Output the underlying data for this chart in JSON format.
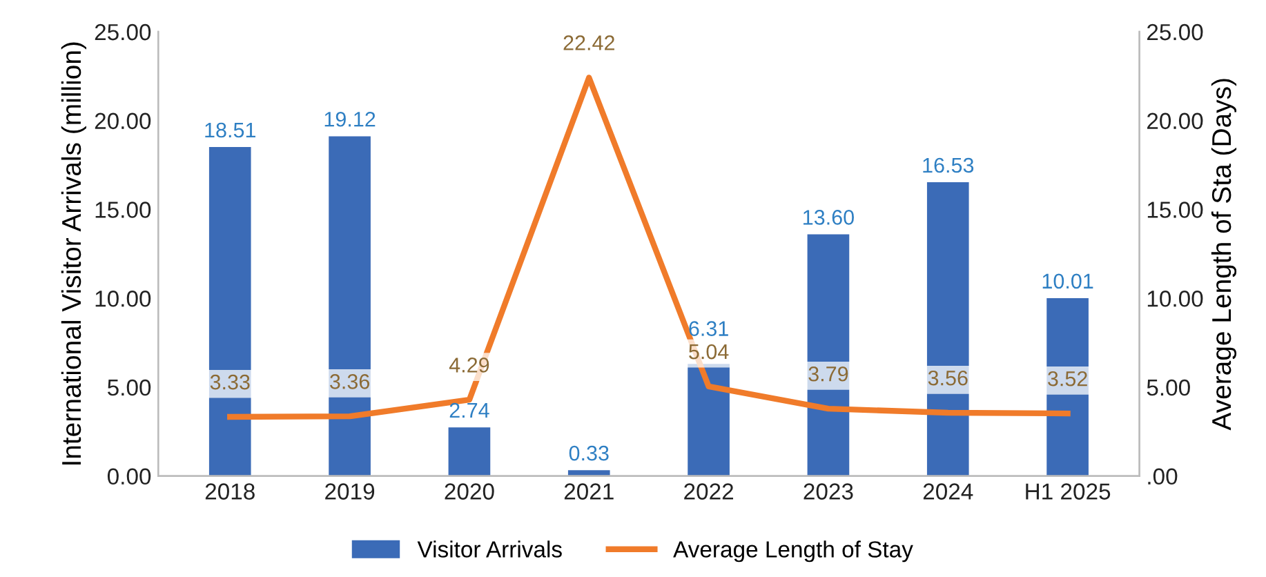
{
  "chart_data": {
    "type": "bar",
    "ylabel": "International Visitor Arrivals (million)",
    "y2label": "Average Length of Sta (Days)",
    "categories": [
      "2018",
      "2019",
      "2020",
      "2021",
      "2022",
      "2023",
      "2024",
      "H1 2025"
    ],
    "series": [
      {
        "name": "Visitor Arrivals",
        "color": "#3b6bb7",
        "values": [
          18.51,
          19.12,
          2.74,
          0.33,
          6.31,
          13.6,
          16.53,
          10.01
        ],
        "value_labels": [
          "18.51",
          "19.12",
          "2.74",
          "0.33",
          "6.31",
          "13.60",
          "16.53",
          "10.01"
        ]
      },
      {
        "name": "Average Length of Stay",
        "type": "line",
        "axis": "y2",
        "color": "#f07b2a",
        "values": [
          3.33,
          3.36,
          4.29,
          22.42,
          5.04,
          3.79,
          3.56,
          3.52
        ],
        "value_labels": [
          "3.33",
          "3.36",
          "4.29",
          "22.42",
          "5.04",
          "3.79",
          "3.56",
          "3.52"
        ]
      }
    ],
    "ylim": [
      0,
      25
    ],
    "yticks": [
      {
        "value": 0,
        "label": "0.00"
      },
      {
        "value": 5,
        "label": "5.00"
      },
      {
        "value": 10,
        "label": "10.00"
      },
      {
        "value": 15,
        "label": "15.00"
      },
      {
        "value": 20,
        "label": "20.00"
      },
      {
        "value": 25,
        "label": "25.00"
      }
    ],
    "y2lim": [
      0,
      25
    ],
    "y2ticks": [
      {
        "value": 0,
        "label": ".00"
      },
      {
        "value": 5,
        "label": "5.00"
      },
      {
        "value": 10,
        "label": "10.00"
      },
      {
        "value": 15,
        "label": "15.00"
      },
      {
        "value": 20,
        "label": "20.00"
      },
      {
        "value": 25,
        "label": "25.00"
      }
    ],
    "grid": false,
    "legend": "bottom",
    "marker": "none",
    "line_style": "solid"
  }
}
